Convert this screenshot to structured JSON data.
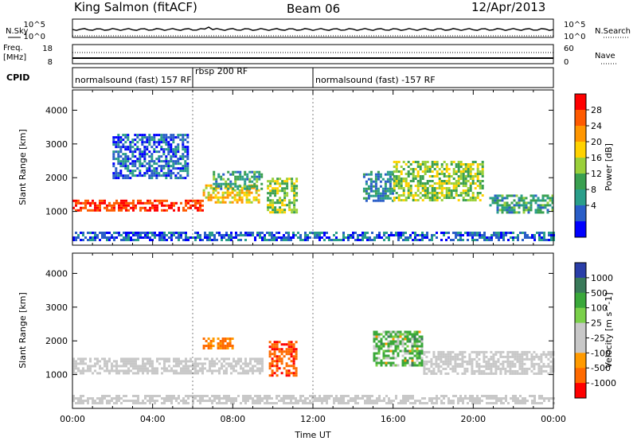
{
  "header": {
    "title": "King Salmon (fitACF)",
    "beam": "Beam 06",
    "date": "12/Apr/2013"
  },
  "strips": {
    "nsky_label": "N.Sky",
    "nsearch_label": "N.Search",
    "noise_ticks": [
      "10^5",
      "10^0"
    ],
    "freq_label": "Freq.",
    "freq_unit": "[MHz]",
    "freq_ticks": [
      "18",
      "8"
    ],
    "nave_label": "Nave",
    "nave_ticks": [
      "60",
      "0"
    ],
    "cpid_label": "CPID",
    "cpid_segments": [
      {
        "label": "normalsound (fast) 157 RF",
        "start_hour": 0.0,
        "end_hour": 6.0
      },
      {
        "label": "rbsp 200 RF",
        "start_hour": 6.0,
        "end_hour": 12.0
      },
      {
        "label": "normalsound (fast) -157 RF",
        "start_hour": 12.0,
        "end_hour": 24.0
      }
    ]
  },
  "chart_data": [
    {
      "type": "heatmap",
      "name": "power",
      "ylabel": "Slant Range [km]",
      "xlim": [
        0,
        24
      ],
      "ylim": [
        0,
        4600
      ],
      "yticks": [
        1000,
        2000,
        3000,
        4000
      ],
      "colorbar": {
        "label": "Power [dB]",
        "ticks": [
          "28",
          "24",
          "20",
          "16",
          "12",
          "8",
          "4"
        ],
        "colors": [
          "#ff0000",
          "#ff5a00",
          "#ff9600",
          "#ffd200",
          "#9ad03a",
          "#3aa050",
          "#2a9e8a",
          "#2a5ec8",
          "#0000ff"
        ]
      },
      "bands": [
        {
          "x0": 0.0,
          "x1": 6.5,
          "y0": 1050,
          "y1": 1350,
          "level": 26
        },
        {
          "x0": 6.5,
          "x1": 9.3,
          "y0": 1300,
          "y1": 1800,
          "level": 18
        },
        {
          "x0": 9.7,
          "x1": 11.2,
          "y0": 1000,
          "y1": 2000,
          "level": 14
        },
        {
          "x0": 7.0,
          "x1": 9.5,
          "y0": 1700,
          "y1": 2200,
          "level": 10
        },
        {
          "x0": 2.0,
          "x1": 5.8,
          "y0": 2000,
          "y1": 3300,
          "level": 6
        },
        {
          "x0": 14.5,
          "x1": 16.0,
          "y0": 1300,
          "y1": 2200,
          "level": 8
        },
        {
          "x0": 16.0,
          "x1": 20.5,
          "y0": 1300,
          "y1": 2500,
          "level": 14
        },
        {
          "x0": 20.8,
          "x1": 24.0,
          "y0": 1000,
          "y1": 1500,
          "level": 10
        },
        {
          "x0": 0.0,
          "x1": 24.0,
          "y0": 150,
          "y1": 400,
          "level": 6
        }
      ]
    },
    {
      "type": "heatmap",
      "name": "velocity",
      "ylabel": "Slant Range [km]",
      "xlabel": "Time UT",
      "xlim": [
        0,
        24
      ],
      "ylim": [
        0,
        4600
      ],
      "yticks": [
        1000,
        2000,
        3000,
        4000
      ],
      "xticks": [
        "00:00",
        "04:00",
        "08:00",
        "12:00",
        "16:00",
        "20:00",
        "00:00"
      ],
      "xtick_hours": [
        0,
        4,
        8,
        12,
        16,
        20,
        24
      ],
      "colorbar": {
        "label": "Velocity [m s^-1]",
        "ticks": [
          "1000",
          "500",
          "100",
          "25",
          "-25",
          "-100",
          "-500",
          "-1000"
        ],
        "colors": [
          "#2a3ea8",
          "#3a7a5a",
          "#3aa83a",
          "#7ad04a",
          "#c8c8c8",
          "#c8c8c8",
          "#ff9a00",
          "#ff6a00",
          "#ff0000"
        ]
      },
      "bands": [
        {
          "x0": 0.0,
          "x1": 9.5,
          "y0": 1050,
          "y1": 1500,
          "level": 0
        },
        {
          "x0": 6.5,
          "x1": 8.0,
          "y0": 1800,
          "y1": 2100,
          "level": -300
        },
        {
          "x0": 9.8,
          "x1": 11.2,
          "y0": 1000,
          "y1": 2000,
          "level": -600
        },
        {
          "x0": 15.0,
          "x1": 17.5,
          "y0": 1300,
          "y1": 2300,
          "level": 120
        },
        {
          "x0": 17.5,
          "x1": 24.0,
          "y0": 1050,
          "y1": 1700,
          "level": 0
        },
        {
          "x0": 0.0,
          "x1": 24.0,
          "y0": 150,
          "y1": 400,
          "level": 0
        }
      ]
    }
  ]
}
